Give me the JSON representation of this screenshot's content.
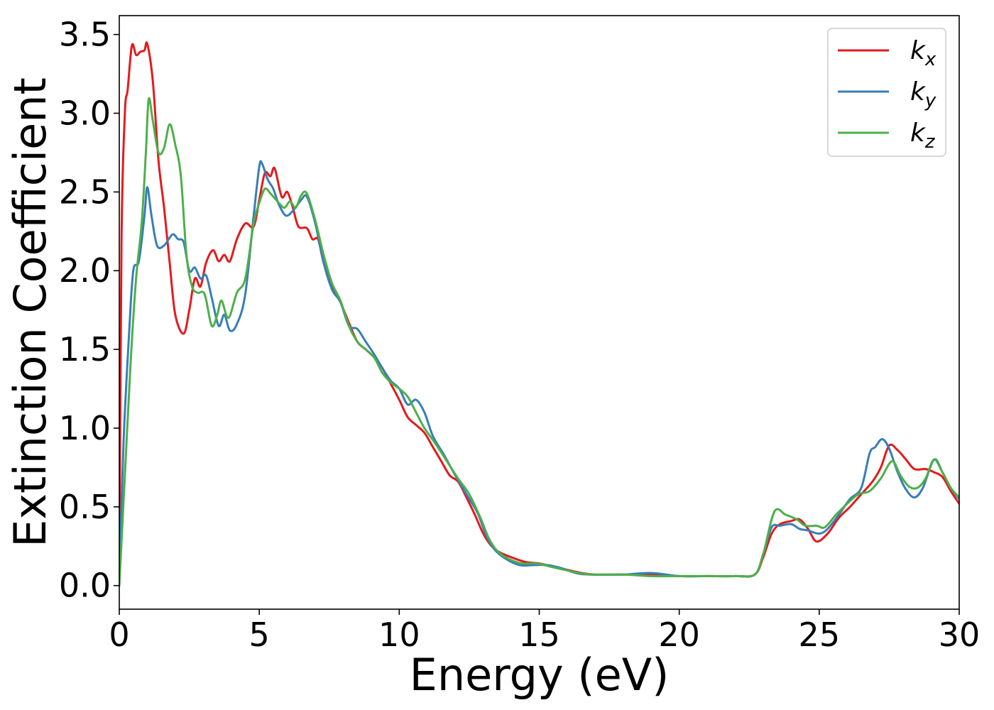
{
  "chart_data": {
    "type": "line",
    "title": "",
    "xlabel": "Energy (eV)",
    "ylabel": "Extinction Coefficient",
    "xlim": [
      0,
      30
    ],
    "ylim": [
      -0.15,
      3.62
    ],
    "xticks": [
      "0",
      "5",
      "10",
      "15",
      "20",
      "25",
      "30"
    ],
    "yticks": [
      "0.0",
      "0.5",
      "1.0",
      "1.5",
      "2.0",
      "2.5",
      "3.0",
      "3.5"
    ],
    "grid": false,
    "legend_position": "top-right",
    "colors": {
      "kx": "#e41a1c",
      "ky": "#377eb8",
      "kz": "#4daf4a"
    },
    "series": [
      {
        "name": "k",
        "subscript": "x",
        "key": "kx",
        "points": [
          [
            0.0,
            0.0
          ],
          [
            0.08,
            2.2
          ],
          [
            0.2,
            3.0
          ],
          [
            0.3,
            3.15
          ],
          [
            0.45,
            3.43
          ],
          [
            0.6,
            3.37
          ],
          [
            0.75,
            3.39
          ],
          [
            0.9,
            3.4
          ],
          [
            1.0,
            3.44
          ],
          [
            1.2,
            3.2
          ],
          [
            1.4,
            2.7
          ],
          [
            1.6,
            2.4
          ],
          [
            1.8,
            2.05
          ],
          [
            2.0,
            1.72
          ],
          [
            2.3,
            1.6
          ],
          [
            2.5,
            1.75
          ],
          [
            2.7,
            1.95
          ],
          [
            2.9,
            1.9
          ],
          [
            3.1,
            2.05
          ],
          [
            3.35,
            2.13
          ],
          [
            3.55,
            2.06
          ],
          [
            3.75,
            2.1
          ],
          [
            3.95,
            2.06
          ],
          [
            4.2,
            2.2
          ],
          [
            4.5,
            2.3
          ],
          [
            4.8,
            2.28
          ],
          [
            5.0,
            2.45
          ],
          [
            5.2,
            2.62
          ],
          [
            5.4,
            2.6
          ],
          [
            5.55,
            2.65
          ],
          [
            5.8,
            2.47
          ],
          [
            6.0,
            2.5
          ],
          [
            6.2,
            2.4
          ],
          [
            6.4,
            2.28
          ],
          [
            6.7,
            2.27
          ],
          [
            6.9,
            2.2
          ],
          [
            7.1,
            2.2
          ],
          [
            7.3,
            2.05
          ],
          [
            7.6,
            1.9
          ],
          [
            7.9,
            1.8
          ],
          [
            8.2,
            1.67
          ],
          [
            8.5,
            1.55
          ],
          [
            8.8,
            1.5
          ],
          [
            9.1,
            1.45
          ],
          [
            9.4,
            1.38
          ],
          [
            9.7,
            1.28
          ],
          [
            10.0,
            1.18
          ],
          [
            10.3,
            1.07
          ],
          [
            10.6,
            1.02
          ],
          [
            10.9,
            0.97
          ],
          [
            11.2,
            0.88
          ],
          [
            11.5,
            0.79
          ],
          [
            11.8,
            0.7
          ],
          [
            12.1,
            0.66
          ],
          [
            12.4,
            0.56
          ],
          [
            12.7,
            0.45
          ],
          [
            13.0,
            0.33
          ],
          [
            13.3,
            0.25
          ],
          [
            13.6,
            0.21
          ],
          [
            14.0,
            0.18
          ],
          [
            14.5,
            0.15
          ],
          [
            15.0,
            0.14
          ],
          [
            15.5,
            0.12
          ],
          [
            16.0,
            0.1
          ],
          [
            16.5,
            0.08
          ],
          [
            17.0,
            0.07
          ],
          [
            18.0,
            0.07
          ],
          [
            19.0,
            0.07
          ],
          [
            20.0,
            0.06
          ],
          [
            21.0,
            0.06
          ],
          [
            22.0,
            0.06
          ],
          [
            22.7,
            0.07
          ],
          [
            23.0,
            0.18
          ],
          [
            23.3,
            0.33
          ],
          [
            23.6,
            0.39
          ],
          [
            24.0,
            0.41
          ],
          [
            24.3,
            0.42
          ],
          [
            24.6,
            0.36
          ],
          [
            24.9,
            0.28
          ],
          [
            25.3,
            0.33
          ],
          [
            25.7,
            0.43
          ],
          [
            26.1,
            0.5
          ],
          [
            26.5,
            0.58
          ],
          [
            26.9,
            0.66
          ],
          [
            27.2,
            0.75
          ],
          [
            27.5,
            0.89
          ],
          [
            27.8,
            0.86
          ],
          [
            28.1,
            0.8
          ],
          [
            28.4,
            0.74
          ],
          [
            28.8,
            0.74
          ],
          [
            29.1,
            0.72
          ],
          [
            29.4,
            0.69
          ],
          [
            29.7,
            0.6
          ],
          [
            30.0,
            0.52
          ]
        ]
      },
      {
        "name": "k",
        "subscript": "y",
        "key": "ky",
        "points": [
          [
            0.0,
            0.0
          ],
          [
            0.15,
            0.9
          ],
          [
            0.35,
            1.6
          ],
          [
            0.5,
            2.0
          ],
          [
            0.7,
            2.06
          ],
          [
            0.9,
            2.35
          ],
          [
            1.0,
            2.53
          ],
          [
            1.15,
            2.35
          ],
          [
            1.35,
            2.16
          ],
          [
            1.6,
            2.16
          ],
          [
            1.9,
            2.23
          ],
          [
            2.1,
            2.2
          ],
          [
            2.3,
            2.18
          ],
          [
            2.5,
            2.0
          ],
          [
            2.7,
            2.02
          ],
          [
            2.9,
            1.95
          ],
          [
            3.1,
            1.97
          ],
          [
            3.3,
            1.83
          ],
          [
            3.55,
            1.65
          ],
          [
            3.75,
            1.72
          ],
          [
            3.95,
            1.62
          ],
          [
            4.2,
            1.66
          ],
          [
            4.5,
            1.85
          ],
          [
            4.8,
            2.35
          ],
          [
            5.0,
            2.66
          ],
          [
            5.1,
            2.68
          ],
          [
            5.3,
            2.58
          ],
          [
            5.5,
            2.52
          ],
          [
            5.7,
            2.42
          ],
          [
            5.95,
            2.35
          ],
          [
            6.2,
            2.38
          ],
          [
            6.5,
            2.45
          ],
          [
            6.7,
            2.47
          ],
          [
            7.0,
            2.3
          ],
          [
            7.3,
            2.05
          ],
          [
            7.6,
            1.88
          ],
          [
            7.9,
            1.8
          ],
          [
            8.2,
            1.65
          ],
          [
            8.5,
            1.63
          ],
          [
            8.8,
            1.55
          ],
          [
            9.1,
            1.47
          ],
          [
            9.4,
            1.38
          ],
          [
            9.7,
            1.3
          ],
          [
            10.0,
            1.25
          ],
          [
            10.3,
            1.15
          ],
          [
            10.6,
            1.18
          ],
          [
            10.9,
            1.1
          ],
          [
            11.2,
            0.95
          ],
          [
            11.6,
            0.83
          ],
          [
            12.0,
            0.7
          ],
          [
            12.4,
            0.58
          ],
          [
            12.8,
            0.46
          ],
          [
            13.1,
            0.32
          ],
          [
            13.4,
            0.23
          ],
          [
            13.8,
            0.17
          ],
          [
            14.3,
            0.13
          ],
          [
            14.8,
            0.13
          ],
          [
            15.3,
            0.13
          ],
          [
            15.8,
            0.11
          ],
          [
            16.3,
            0.08
          ],
          [
            16.8,
            0.07
          ],
          [
            18.0,
            0.07
          ],
          [
            19.0,
            0.08
          ],
          [
            20.0,
            0.06
          ],
          [
            21.0,
            0.06
          ],
          [
            22.0,
            0.06
          ],
          [
            22.7,
            0.07
          ],
          [
            23.0,
            0.2
          ],
          [
            23.3,
            0.37
          ],
          [
            23.6,
            0.38
          ],
          [
            24.0,
            0.39
          ],
          [
            24.3,
            0.36
          ],
          [
            24.6,
            0.35
          ],
          [
            25.0,
            0.33
          ],
          [
            25.3,
            0.36
          ],
          [
            25.7,
            0.45
          ],
          [
            26.1,
            0.55
          ],
          [
            26.5,
            0.62
          ],
          [
            26.8,
            0.84
          ],
          [
            27.0,
            0.88
          ],
          [
            27.25,
            0.93
          ],
          [
            27.5,
            0.87
          ],
          [
            27.8,
            0.72
          ],
          [
            28.1,
            0.61
          ],
          [
            28.4,
            0.56
          ],
          [
            28.7,
            0.62
          ],
          [
            29.1,
            0.8
          ],
          [
            29.4,
            0.72
          ],
          [
            29.7,
            0.62
          ],
          [
            30.0,
            0.55
          ]
        ]
      },
      {
        "name": "k",
        "subscript": "z",
        "key": "kz",
        "points": [
          [
            0.0,
            0.0
          ],
          [
            0.2,
            0.7
          ],
          [
            0.4,
            1.4
          ],
          [
            0.6,
            1.95
          ],
          [
            0.8,
            2.3
          ],
          [
            0.95,
            2.75
          ],
          [
            1.05,
            3.09
          ],
          [
            1.2,
            2.95
          ],
          [
            1.4,
            2.75
          ],
          [
            1.6,
            2.78
          ],
          [
            1.8,
            2.93
          ],
          [
            2.0,
            2.8
          ],
          [
            2.2,
            2.6
          ],
          [
            2.4,
            2.1
          ],
          [
            2.6,
            1.9
          ],
          [
            2.8,
            1.86
          ],
          [
            3.05,
            1.85
          ],
          [
            3.3,
            1.65
          ],
          [
            3.5,
            1.72
          ],
          [
            3.65,
            1.81
          ],
          [
            3.9,
            1.7
          ],
          [
            4.2,
            1.86
          ],
          [
            4.5,
            1.95
          ],
          [
            4.8,
            2.3
          ],
          [
            5.0,
            2.43
          ],
          [
            5.2,
            2.52
          ],
          [
            5.4,
            2.49
          ],
          [
            5.7,
            2.43
          ],
          [
            5.9,
            2.4
          ],
          [
            6.1,
            2.44
          ],
          [
            6.3,
            2.4
          ],
          [
            6.5,
            2.48
          ],
          [
            6.7,
            2.49
          ],
          [
            7.0,
            2.32
          ],
          [
            7.3,
            2.1
          ],
          [
            7.6,
            1.92
          ],
          [
            7.9,
            1.81
          ],
          [
            8.2,
            1.65
          ],
          [
            8.5,
            1.55
          ],
          [
            8.8,
            1.5
          ],
          [
            9.1,
            1.45
          ],
          [
            9.4,
            1.35
          ],
          [
            9.7,
            1.29
          ],
          [
            10.0,
            1.25
          ],
          [
            10.3,
            1.2
          ],
          [
            10.6,
            1.1
          ],
          [
            10.9,
            1.0
          ],
          [
            11.3,
            0.9
          ],
          [
            11.7,
            0.79
          ],
          [
            12.1,
            0.68
          ],
          [
            12.5,
            0.58
          ],
          [
            12.9,
            0.43
          ],
          [
            13.2,
            0.3
          ],
          [
            13.5,
            0.22
          ],
          [
            13.9,
            0.17
          ],
          [
            14.4,
            0.14
          ],
          [
            14.9,
            0.14
          ],
          [
            15.4,
            0.12
          ],
          [
            15.9,
            0.1
          ],
          [
            16.4,
            0.08
          ],
          [
            16.9,
            0.07
          ],
          [
            18.0,
            0.07
          ],
          [
            19.0,
            0.06
          ],
          [
            20.0,
            0.06
          ],
          [
            21.0,
            0.06
          ],
          [
            22.0,
            0.06
          ],
          [
            22.7,
            0.07
          ],
          [
            23.0,
            0.2
          ],
          [
            23.4,
            0.47
          ],
          [
            23.8,
            0.45
          ],
          [
            24.2,
            0.42
          ],
          [
            24.5,
            0.38
          ],
          [
            24.9,
            0.38
          ],
          [
            25.2,
            0.37
          ],
          [
            25.6,
            0.45
          ],
          [
            26.0,
            0.52
          ],
          [
            26.4,
            0.58
          ],
          [
            26.8,
            0.6
          ],
          [
            27.2,
            0.68
          ],
          [
            27.6,
            0.79
          ],
          [
            27.9,
            0.7
          ],
          [
            28.2,
            0.63
          ],
          [
            28.5,
            0.62
          ],
          [
            28.8,
            0.68
          ],
          [
            29.1,
            0.8
          ],
          [
            29.4,
            0.72
          ],
          [
            29.7,
            0.62
          ],
          [
            30.0,
            0.56
          ]
        ]
      }
    ]
  }
}
